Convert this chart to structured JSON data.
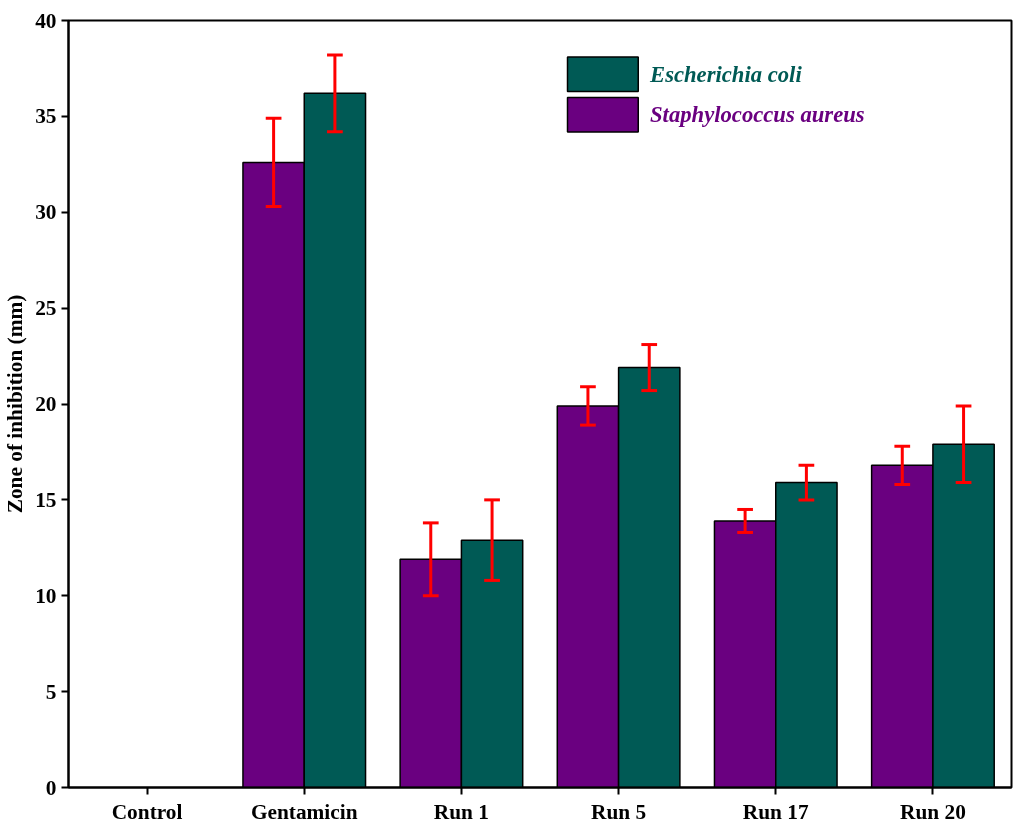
{
  "chart_data": {
    "type": "bar",
    "ylabel": "Zone of inhibition (mm)",
    "categories": [
      "Control",
      "Gentamicin",
      "Run 1",
      "Run 5",
      "Run 17",
      "Run 20"
    ],
    "series": [
      {
        "name": "Staphylococcus aureus",
        "color": "#6a0080",
        "values": [
          null,
          32.6,
          11.9,
          19.9,
          13.9,
          16.8
        ],
        "errors": [
          null,
          2.3,
          1.9,
          1.0,
          0.6,
          1.0
        ]
      },
      {
        "name": "Escherichia coli",
        "color": "#005a55",
        "values": [
          null,
          36.2,
          12.9,
          21.9,
          15.9,
          17.9
        ],
        "errors": [
          null,
          2.0,
          2.1,
          1.2,
          0.9,
          2.0
        ]
      }
    ],
    "ylim": [
      0,
      40
    ],
    "yticks": [
      0,
      5,
      10,
      15,
      20,
      25,
      30,
      35,
      40
    ],
    "grid": false,
    "legend": "top right"
  }
}
